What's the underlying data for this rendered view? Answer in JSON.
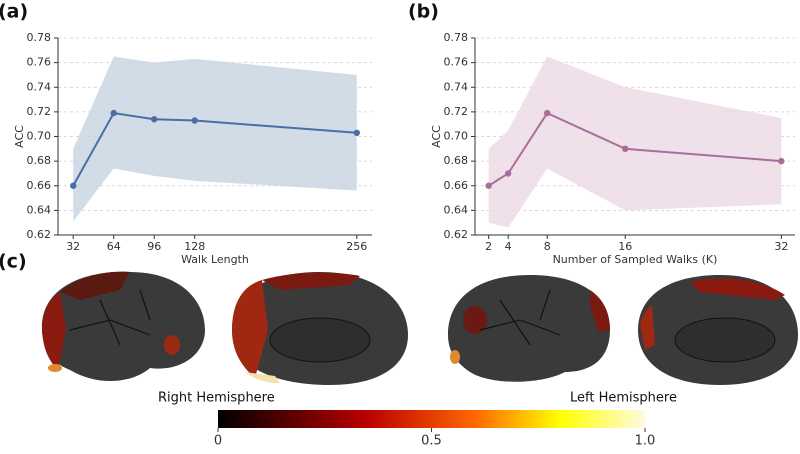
{
  "chart_data": [
    {
      "type": "line",
      "label": "(a)",
      "xlabel": "Walk Length",
      "ylabel": "ACC",
      "x": [
        32,
        64,
        96,
        128,
        256
      ],
      "series": [
        {
          "color": "#4a6fa5",
          "band_color": "#c9d6e3",
          "values": [
            0.66,
            0.719,
            0.714,
            0.713,
            0.703
          ],
          "lower": [
            0.631,
            0.674,
            0.668,
            0.664,
            0.656
          ],
          "upper": [
            0.69,
            0.765,
            0.76,
            0.763,
            0.75
          ]
        }
      ],
      "xlim": [
        20,
        268
      ],
      "xticks": [
        32,
        64,
        96,
        128,
        256
      ],
      "ylim": [
        0.62,
        0.78
      ],
      "yticks": [
        0.62,
        0.64,
        0.66,
        0.68,
        {
          "value": 0.7,
          "label": "0.70"
        },
        0.72,
        0.74,
        0.76,
        0.78
      ],
      "grid": true
    },
    {
      "type": "line",
      "label": "(b)",
      "xlabel": "Number of Sampled Walks (K)",
      "ylabel": "ACC",
      "x": [
        2,
        4,
        8,
        16,
        32
      ],
      "series": [
        {
          "color": "#a86e9a",
          "band_color": "#ecdae6",
          "values": [
            0.66,
            0.67,
            0.719,
            0.69,
            0.68
          ],
          "lower": [
            0.63,
            0.626,
            0.674,
            0.64,
            0.645
          ],
          "upper": [
            0.69,
            0.705,
            0.765,
            0.74,
            0.715
          ]
        }
      ],
      "xlim": [
        0.6,
        33.4
      ],
      "xticks": [
        2,
        4,
        8,
        16,
        32
      ],
      "ylim": [
        0.62,
        0.78
      ],
      "yticks": [
        0.62,
        0.64,
        0.66,
        0.68,
        {
          "value": 0.7,
          "label": "0.70"
        },
        0.72,
        0.74,
        0.76,
        0.78
      ],
      "grid": true
    }
  ],
  "panel_c": {
    "label": "(c)",
    "right_caption": "Right Hemisphere",
    "left_caption": "Left Hemisphere",
    "colorbar": {
      "lim": [
        0,
        1
      ],
      "ticks": [
        0,
        0.5,
        {
          "value": 1,
          "label": "1.0"
        }
      ]
    }
  }
}
